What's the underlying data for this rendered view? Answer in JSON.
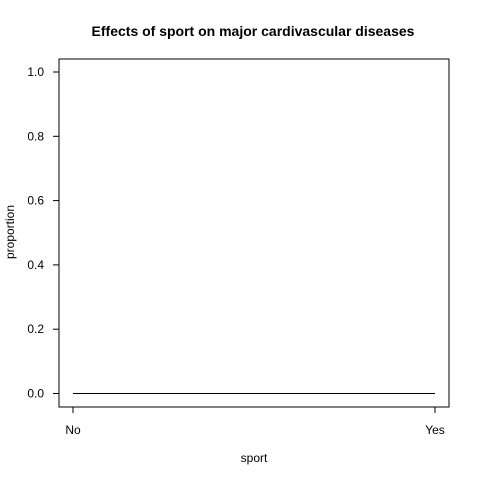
{
  "chart_data": {
    "type": "line",
    "title": "Effects of sport on major cardivascular diseases",
    "xlabel": "sport",
    "ylabel": "proportion",
    "categories": [
      "No",
      "Yes"
    ],
    "y_ticks": [
      "0.0",
      "0.2",
      "0.4",
      "0.6",
      "0.8",
      "1.0"
    ],
    "ylim": [
      0,
      1
    ],
    "grid": false,
    "series": [
      {
        "values": [
          0,
          0
        ]
      }
    ],
    "line_color": "#000000",
    "frame_color": "#000000"
  }
}
